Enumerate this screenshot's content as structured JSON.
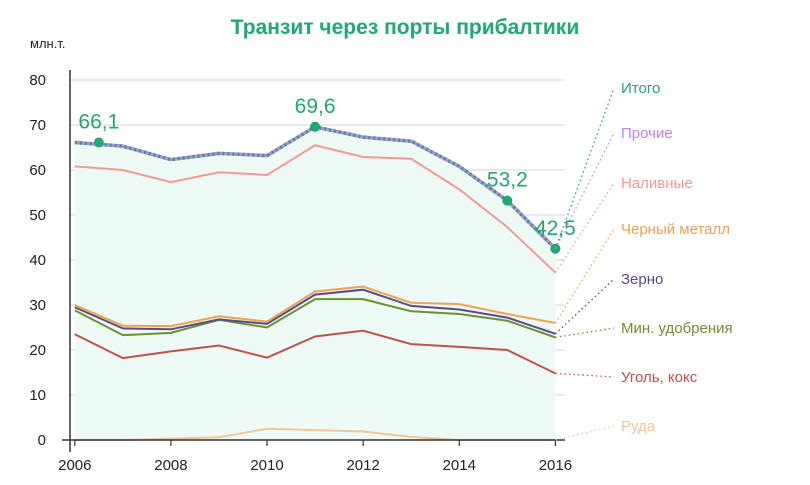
{
  "chart_data": {
    "type": "line",
    "title": "Транзит через порты прибалтики",
    "unit": "млн.т.",
    "x": [
      2006,
      2007,
      2008,
      2009,
      2010,
      2011,
      2012,
      2013,
      2014,
      2015,
      2016
    ],
    "x_ticks": [
      "2006",
      "2008",
      "2010",
      "2012",
      "2014",
      "2016"
    ],
    "y_ticks": [
      "0",
      "10",
      "20",
      "30",
      "40",
      "50",
      "60",
      "70",
      "80"
    ],
    "ylim": [
      0,
      80
    ],
    "xlim": [
      2005.9,
      2016.2
    ],
    "grid": true,
    "legend_position": "right",
    "series": [
      {
        "name": "Итого",
        "color": "#1fa776",
        "dotted_color": "#c384e6",
        "values": [
          66.1,
          65.3,
          62.3,
          63.7,
          63.2,
          69.6,
          67.3,
          66.4,
          60.8,
          53.2,
          42.5
        ]
      },
      {
        "name": "Прочие",
        "color": "#c384e6",
        "values": [
          66.1,
          65.3,
          62.3,
          63.7,
          63.2,
          69.6,
          67.3,
          66.4,
          60.8,
          53.2,
          42.5
        ]
      },
      {
        "name": "Наливные",
        "color": "#f29a98",
        "values": [
          60.8,
          60.0,
          57.3,
          59.5,
          58.9,
          65.5,
          62.9,
          62.5,
          55.7,
          47.3,
          37.2
        ]
      },
      {
        "name": "Черный металл",
        "color": "#f0a24e",
        "values": [
          30.0,
          25.4,
          25.3,
          27.5,
          26.3,
          33.0,
          34.1,
          30.5,
          30.2,
          28.0,
          26.0
        ]
      },
      {
        "name": "Зерно",
        "color": "#5b4a8b",
        "values": [
          29.5,
          24.8,
          24.6,
          26.8,
          25.8,
          32.3,
          33.4,
          29.8,
          29.0,
          27.2,
          23.6
        ]
      },
      {
        "name": "Мин. удобрения",
        "color": "#6f8f2f",
        "values": [
          28.8,
          23.3,
          23.8,
          26.7,
          25.0,
          31.3,
          31.3,
          28.6,
          28.0,
          26.5,
          22.8
        ]
      },
      {
        "name": "Уголь, кокс",
        "color": "#c0504d",
        "values": [
          23.5,
          18.2,
          19.7,
          21.0,
          18.3,
          23.0,
          24.3,
          21.3,
          20.7,
          20.0,
          14.8
        ]
      },
      {
        "name": "Руда",
        "color": "#f5c59a",
        "values": [
          0,
          0,
          0.3,
          0.6,
          2.5,
          2.2,
          1.9,
          0.7,
          0,
          0,
          0
        ]
      }
    ],
    "annotations": [
      {
        "x": 2006.5,
        "y": 66.1,
        "label": "66,1"
      },
      {
        "x": 2011,
        "y": 69.6,
        "label": "69,6"
      },
      {
        "x": 2015,
        "y": 53.2,
        "label": "53,2"
      },
      {
        "x": 2016,
        "y": 42.5,
        "label": "42,5"
      }
    ],
    "fill_color": "#eefaf5"
  }
}
